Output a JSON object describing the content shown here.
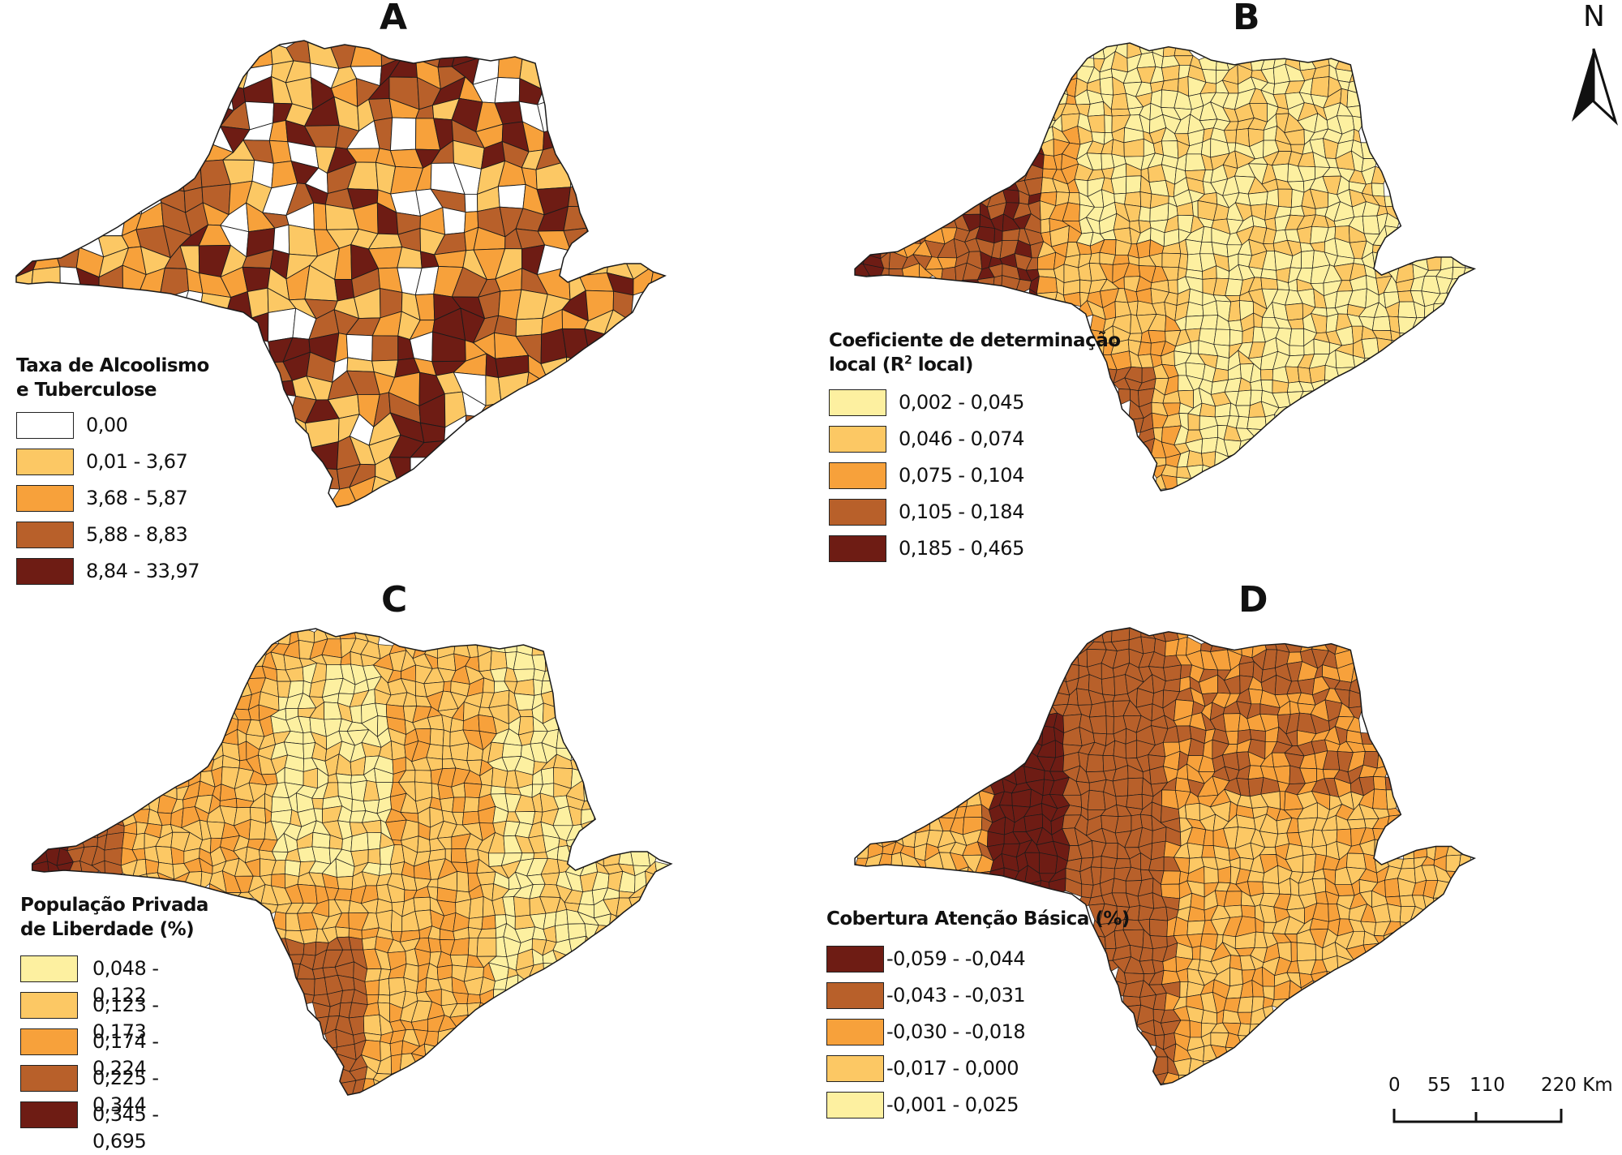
{
  "panels": [
    {
      "letter": "A",
      "legend": {
        "title_line1": "Taxa de Alcoolismo",
        "title_line2": "e Tuberculose",
        "classes": [
          {
            "label": "0,00",
            "color": "#ffffff"
          },
          {
            "label": "0,01 - 3,67",
            "color": "#fcc864"
          },
          {
            "label": "3,68 - 5,87",
            "color": "#f7a13b"
          },
          {
            "label": "5,88 - 8,83",
            "color": "#b8602a"
          },
          {
            "label": "8,84 - 33,97",
            "color": "#6e1c14"
          }
        ]
      }
    },
    {
      "letter": "B",
      "legend": {
        "title_line1": "Coeficiente de determinação",
        "title_line2_pre": "local (R",
        "title_line2_sup": "2",
        "title_line2_post": " local)",
        "classes": [
          {
            "label": "0,002 - 0,045",
            "color": "#fdf0a0"
          },
          {
            "label": "0,046 - 0,074",
            "color": "#fcc864"
          },
          {
            "label": "0,075 - 0,104",
            "color": "#f7a13b"
          },
          {
            "label": "0,105 - 0,184",
            "color": "#b8602a"
          },
          {
            "label": "0,185 - 0,465",
            "color": "#6e1c14"
          }
        ]
      }
    },
    {
      "letter": "C",
      "legend": {
        "title_line1": "População Privada",
        "title_line2": "de Liberdade (%)",
        "classes": [
          {
            "label": "0,048 - 0,122",
            "color": "#fdf0a0"
          },
          {
            "label": "0,123 - 0,173",
            "color": "#fcc864"
          },
          {
            "label": "0,174 - 0,224",
            "color": "#f7a13b"
          },
          {
            "label": "0,225 - 0,344",
            "color": "#b8602a"
          },
          {
            "label": "0,345 - 0,695",
            "color": "#6e1c14"
          }
        ]
      }
    },
    {
      "letter": "D",
      "legend": {
        "title_line1": "Cobertura Atenção Básica (%)",
        "classes": [
          {
            "label": "-0,059 - -0,044",
            "color": "#6e1c14"
          },
          {
            "label": "-0,043 - -0,031",
            "color": "#b8602a"
          },
          {
            "label": "-0,030 - -0,018",
            "color": "#f7a13b"
          },
          {
            "label": "-0,017 - 0,000",
            "color": "#fcc864"
          },
          {
            "label": "-0,001 - 0,025",
            "color": "#fdf0a0"
          }
        ]
      }
    }
  ],
  "north_arrow": {
    "label": "N"
  },
  "scale_bar": {
    "labels": [
      "0",
      "55",
      "110",
      "220 Km"
    ]
  },
  "colors": {
    "border": "#1a1a1a"
  }
}
